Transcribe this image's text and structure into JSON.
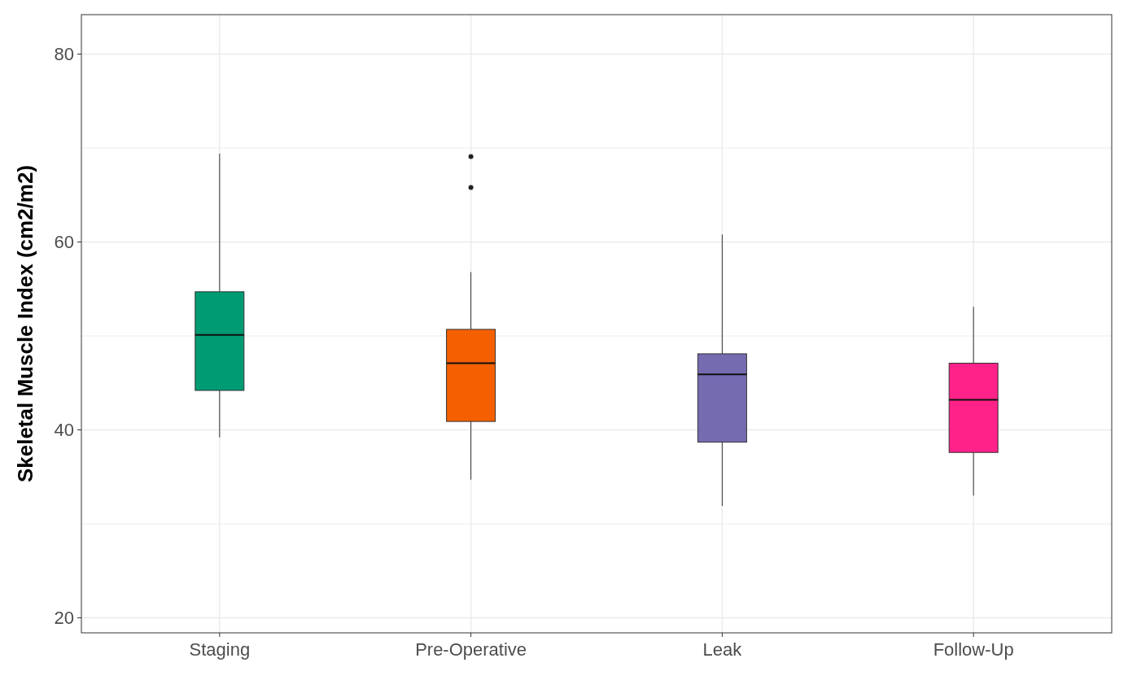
{
  "chart_data": {
    "type": "box",
    "ylabel": "Skeletal Muscle Index (cm2/m2)",
    "categories": [
      "Staging",
      "Pre-Operative",
      "Leak",
      "Follow-Up"
    ],
    "colors": [
      "#009b72",
      "#f45f00",
      "#756bb1",
      "#ff2289"
    ],
    "boxes": [
      {
        "low": 39.2,
        "q1": 44.2,
        "median": 50.1,
        "q3": 54.7,
        "high": 69.4
      },
      {
        "low": 34.7,
        "q1": 40.9,
        "median": 47.1,
        "q3": 50.7,
        "high": 56.8,
        "outliers": [
          65.8,
          69.1
        ]
      },
      {
        "low": 31.9,
        "q1": 38.7,
        "median": 45.9,
        "q3": 48.1,
        "high": 60.8
      },
      {
        "low": 33.0,
        "q1": 37.6,
        "median": 43.2,
        "q3": 47.1,
        "high": 53.1
      }
    ],
    "ylim": [
      18.4,
      84.2
    ],
    "yticks": [
      20,
      {
        "value": 30,
        "label": null
      },
      40,
      {
        "value": 50,
        "label": null
      },
      60,
      {
        "value": 70,
        "label": null
      },
      80
    ],
    "grid": true
  }
}
